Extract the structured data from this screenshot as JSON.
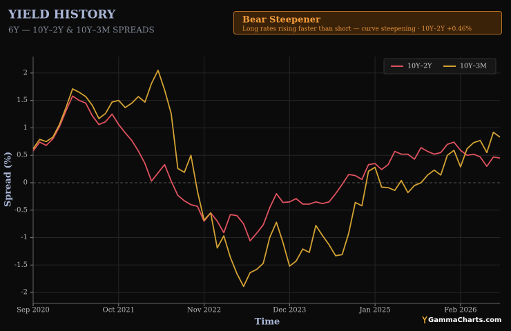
{
  "chart_data": {
    "type": "line",
    "title": "YIELD HISTORY",
    "subtitle": "6Y — 10Y–2Y & 10Y–3M SPREADS",
    "annotation": {
      "title": "Bear Steepener",
      "text": "Long rates rising faster than short — curve steepening · 10Y–2Y +0.46%"
    },
    "watermark": "GammaCharts.com",
    "xlabel": "Time",
    "ylabel": "Spread (%)",
    "x": [
      "2020-09",
      "2020-10",
      "2020-11",
      "2020-12",
      "2021-01",
      "2021-02",
      "2021-03",
      "2021-04",
      "2021-05",
      "2021-06",
      "2021-07",
      "2021-08",
      "2021-09",
      "2021-10",
      "2021-11",
      "2021-12",
      "2022-01",
      "2022-02",
      "2022-03",
      "2022-04",
      "2022-05",
      "2022-06",
      "2022-07",
      "2022-08",
      "2022-09",
      "2022-10",
      "2022-11",
      "2022-12",
      "2023-01",
      "2023-02",
      "2023-03",
      "2023-04",
      "2023-05",
      "2023-06",
      "2023-07",
      "2023-08",
      "2023-09",
      "2023-10",
      "2023-11",
      "2023-12",
      "2024-01",
      "2024-02",
      "2024-03",
      "2024-04",
      "2024-05",
      "2024-06",
      "2024-07",
      "2024-08",
      "2024-09",
      "2024-10",
      "2024-11",
      "2024-12",
      "2025-01",
      "2025-02",
      "2025-03",
      "2025-04",
      "2025-05",
      "2025-06",
      "2025-07",
      "2025-08",
      "2025-09",
      "2025-10",
      "2025-11",
      "2025-12",
      "2026-01",
      "2026-02",
      "2026-03",
      "2026-04",
      "2026-05",
      "2026-06",
      "2026-07",
      "2026-08"
    ],
    "series": [
      {
        "name": "10Y–2Y",
        "color": "#e0525e",
        "values": [
          0.58,
          0.74,
          0.68,
          0.8,
          1.02,
          1.31,
          1.58,
          1.5,
          1.45,
          1.22,
          1.06,
          1.11,
          1.25,
          1.06,
          0.91,
          0.77,
          0.58,
          0.35,
          0.03,
          0.18,
          0.33,
          0.03,
          -0.23,
          -0.33,
          -0.4,
          -0.43,
          -0.7,
          -0.55,
          -0.7,
          -0.91,
          -0.58,
          -0.6,
          -0.75,
          -1.06,
          -0.92,
          -0.77,
          -0.45,
          -0.2,
          -0.36,
          -0.35,
          -0.29,
          -0.39,
          -0.39,
          -0.35,
          -0.38,
          -0.35,
          -0.2,
          -0.03,
          0.15,
          0.13,
          0.06,
          0.33,
          0.35,
          0.24,
          0.33,
          0.57,
          0.52,
          0.52,
          0.43,
          0.64,
          0.57,
          0.52,
          0.55,
          0.7,
          0.74,
          0.59,
          0.5,
          0.52,
          0.47,
          0.3,
          0.47,
          0.45
        ]
      },
      {
        "name": "10Y–3M",
        "color": "#d4a233",
        "values": [
          0.62,
          0.79,
          0.75,
          0.83,
          1.06,
          1.37,
          1.71,
          1.65,
          1.57,
          1.41,
          1.17,
          1.26,
          1.47,
          1.5,
          1.37,
          1.45,
          1.57,
          1.47,
          1.81,
          2.05,
          1.69,
          1.26,
          0.26,
          0.19,
          0.5,
          -0.16,
          -0.68,
          -0.55,
          -1.19,
          -0.97,
          -1.36,
          -1.66,
          -1.89,
          -1.64,
          -1.58,
          -1.47,
          -0.99,
          -0.72,
          -1.09,
          -1.52,
          -1.43,
          -1.21,
          -1.27,
          -0.78,
          -0.96,
          -1.13,
          -1.33,
          -1.31,
          -0.92,
          -0.36,
          -0.42,
          0.21,
          0.28,
          -0.08,
          -0.09,
          -0.14,
          0.04,
          -0.18,
          -0.05,
          0.0,
          0.14,
          0.23,
          0.14,
          0.5,
          0.59,
          0.29,
          0.62,
          0.73,
          0.77,
          0.55,
          0.92,
          0.83
        ]
      }
    ],
    "xlim": [
      "2020-09",
      "2026-08"
    ],
    "xticks": [
      {
        "value": "2020-09",
        "label": "Sep 2020"
      },
      {
        "value": "2021-10",
        "label": "Oct 2021"
      },
      {
        "value": "2022-11",
        "label": "Nov 2022"
      },
      {
        "value": "2023-12",
        "label": "Dec 2023"
      },
      {
        "value": "2025-01",
        "label": "Jan 2025"
      },
      {
        "value": "2026-02",
        "label": "Feb 2026"
      }
    ],
    "ylim": [
      -2.2,
      2.3
    ],
    "yticks": [
      -2,
      -1.5,
      -1,
      -0.5,
      0,
      0.5,
      1,
      1.5,
      2
    ],
    "grid": true,
    "legend": "upper right"
  }
}
